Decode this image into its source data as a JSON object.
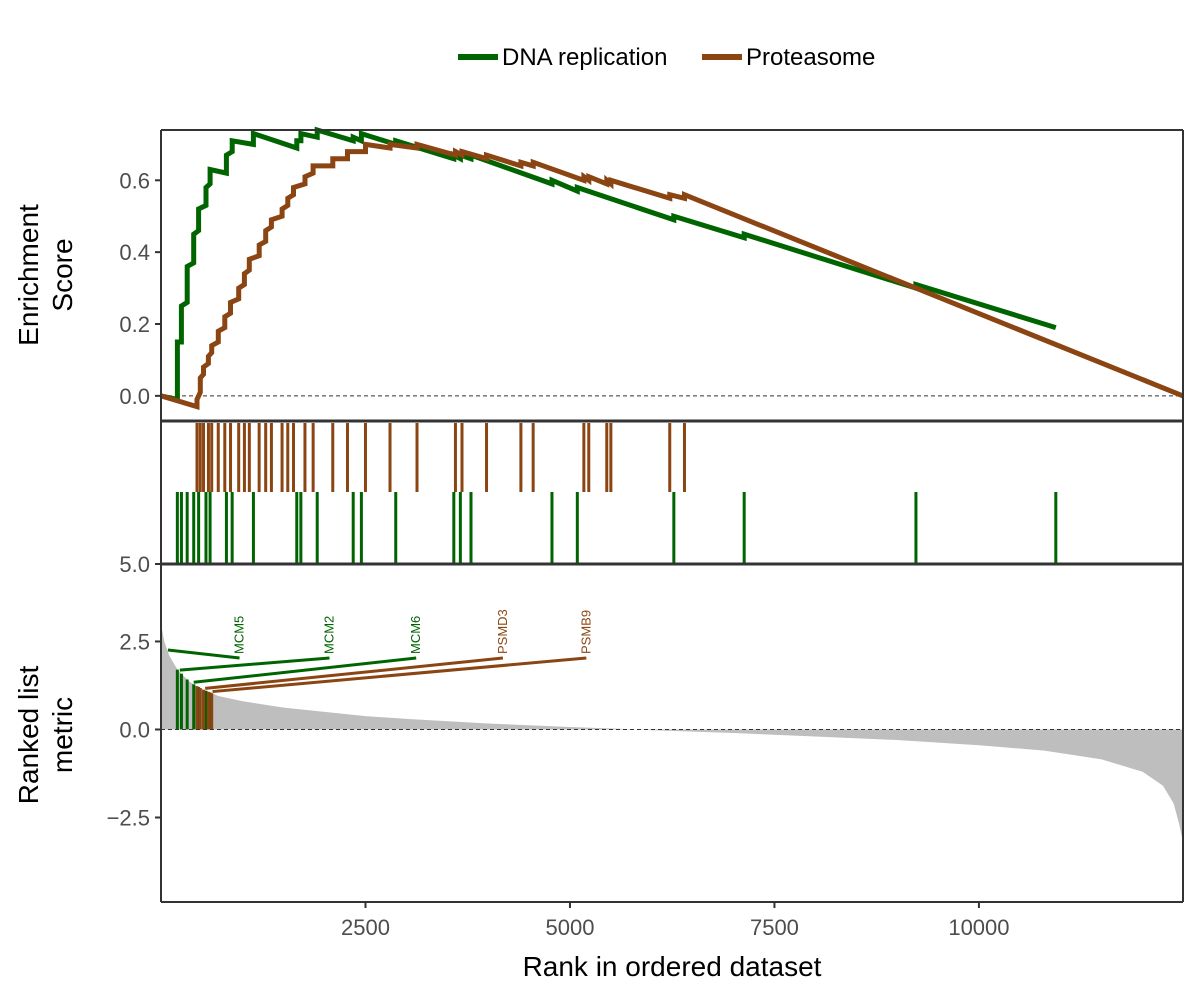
{
  "chart_data": {
    "type": "line",
    "xlabel": "Rank in ordered dataset",
    "x_ticks": [
      2500,
      5000,
      7500,
      10000
    ],
    "xlim": [
      0,
      12495
    ],
    "legend": {
      "position": "top",
      "entries": [
        {
          "name": "DNA replication",
          "color": "#006400"
        },
        {
          "name": "Proteasome",
          "color": "#8B4513"
        }
      ]
    },
    "panels": {
      "enrichment": {
        "ylabel_lines": [
          "Enrichment",
          "Score"
        ],
        "ylim": [
          -0.07,
          0.74
        ],
        "y_ticks": [
          {
            "value": 0.0,
            "label": "0.0"
          },
          {
            "value": 0.2,
            "label": "0.2"
          },
          {
            "value": 0.4,
            "label": "0.4"
          },
          {
            "value": 0.6,
            "label": "0.6"
          }
        ],
        "zero_line": true
      },
      "hits": {
        "bottom_tick_label": "5.0"
      },
      "ranked": {
        "ylabel_lines": [
          "Ranked list",
          "metric"
        ],
        "ylim": [
          -4.9,
          4.7
        ],
        "y_ticks": [
          {
            "value": 2.5,
            "label": "2.5"
          },
          {
            "value": 0.0,
            "label": "0.0"
          },
          {
            "value": -2.5,
            "label": "−2.5"
          }
        ],
        "zero_line": true,
        "fill_color": "#bebebe",
        "metric_profile": [
          {
            "x": 0,
            "y": 3.0
          },
          {
            "x": 40,
            "y": 2.5
          },
          {
            "x": 100,
            "y": 2.1
          },
          {
            "x": 200,
            "y": 1.7
          },
          {
            "x": 350,
            "y": 1.35
          },
          {
            "x": 500,
            "y": 1.15
          },
          {
            "x": 700,
            "y": 0.95
          },
          {
            "x": 1000,
            "y": 0.8
          },
          {
            "x": 1500,
            "y": 0.62
          },
          {
            "x": 2000,
            "y": 0.5
          },
          {
            "x": 2500,
            "y": 0.38
          },
          {
            "x": 3000,
            "y": 0.3
          },
          {
            "x": 4000,
            "y": 0.17
          },
          {
            "x": 5000,
            "y": 0.07
          },
          {
            "x": 5600,
            "y": 0.02
          },
          {
            "x": 6000,
            "y": -0.02
          },
          {
            "x": 7000,
            "y": -0.1
          },
          {
            "x": 8000,
            "y": -0.2
          },
          {
            "x": 9000,
            "y": -0.3
          },
          {
            "x": 10000,
            "y": -0.45
          },
          {
            "x": 10800,
            "y": -0.6
          },
          {
            "x": 11500,
            "y": -0.85
          },
          {
            "x": 12000,
            "y": -1.2
          },
          {
            "x": 12250,
            "y": -1.6
          },
          {
            "x": 12380,
            "y": -2.1
          },
          {
            "x": 12450,
            "y": -2.7
          },
          {
            "x": 12495,
            "y": -3.2
          }
        ],
        "gene_labels": [
          {
            "gene": "MCM5",
            "series": "DNA replication",
            "rank": 85,
            "label_x": 960
          },
          {
            "gene": "MCM2",
            "series": "DNA replication",
            "rank": 230,
            "label_x": 2060
          },
          {
            "gene": "MCM6",
            "series": "DNA replication",
            "rank": 400,
            "label_x": 3120
          },
          {
            "gene": "PSMD3",
            "series": "Proteasome",
            "rank": 540,
            "label_x": 4180
          },
          {
            "gene": "PSMB9",
            "series": "Proteasome",
            "rank": 630,
            "label_x": 5200
          }
        ]
      }
    },
    "series": [
      {
        "name": "DNA replication",
        "color": "#006400",
        "hit_ranks": [
          200,
          250,
          320,
          400,
          460,
          550,
          600,
          800,
          870,
          1130,
          1660,
          1710,
          1910,
          2350,
          2450,
          2870,
          3580,
          3660,
          3790,
          4780,
          5090,
          6270,
          7130,
          9230,
          10940
        ],
        "es_curve": [
          {
            "x": 0,
            "y": 0.0
          },
          {
            "x": 200,
            "y": -0.01
          },
          {
            "x": 200,
            "y": 0.15
          },
          {
            "x": 250,
            "y": 0.15
          },
          {
            "x": 250,
            "y": 0.25
          },
          {
            "x": 320,
            "y": 0.26
          },
          {
            "x": 320,
            "y": 0.36
          },
          {
            "x": 400,
            "y": 0.37
          },
          {
            "x": 400,
            "y": 0.45
          },
          {
            "x": 460,
            "y": 0.46
          },
          {
            "x": 460,
            "y": 0.52
          },
          {
            "x": 550,
            "y": 0.53
          },
          {
            "x": 550,
            "y": 0.58
          },
          {
            "x": 600,
            "y": 0.59
          },
          {
            "x": 600,
            "y": 0.63
          },
          {
            "x": 800,
            "y": 0.62
          },
          {
            "x": 800,
            "y": 0.67
          },
          {
            "x": 870,
            "y": 0.68
          },
          {
            "x": 870,
            "y": 0.71
          },
          {
            "x": 1130,
            "y": 0.7
          },
          {
            "x": 1130,
            "y": 0.73
          },
          {
            "x": 1660,
            "y": 0.69
          },
          {
            "x": 1660,
            "y": 0.71
          },
          {
            "x": 1710,
            "y": 0.71
          },
          {
            "x": 1710,
            "y": 0.73
          },
          {
            "x": 1910,
            "y": 0.72
          },
          {
            "x": 1910,
            "y": 0.74
          },
          {
            "x": 2350,
            "y": 0.71
          },
          {
            "x": 2350,
            "y": 0.72
          },
          {
            "x": 2450,
            "y": 0.71
          },
          {
            "x": 2450,
            "y": 0.73
          },
          {
            "x": 2870,
            "y": 0.7
          },
          {
            "x": 2870,
            "y": 0.71
          },
          {
            "x": 3580,
            "y": 0.66
          },
          {
            "x": 3580,
            "y": 0.67
          },
          {
            "x": 3660,
            "y": 0.66
          },
          {
            "x": 3660,
            "y": 0.67
          },
          {
            "x": 3790,
            "y": 0.66
          },
          {
            "x": 3790,
            "y": 0.67
          },
          {
            "x": 4780,
            "y": 0.59
          },
          {
            "x": 4780,
            "y": 0.6
          },
          {
            "x": 5090,
            "y": 0.57
          },
          {
            "x": 5090,
            "y": 0.58
          },
          {
            "x": 6270,
            "y": 0.49
          },
          {
            "x": 6270,
            "y": 0.5
          },
          {
            "x": 7130,
            "y": 0.44
          },
          {
            "x": 7130,
            "y": 0.45
          },
          {
            "x": 9230,
            "y": 0.3
          },
          {
            "x": 9230,
            "y": 0.31
          },
          {
            "x": 10940,
            "y": 0.19
          }
        ]
      },
      {
        "name": "Proteasome",
        "color": "#8B4513",
        "hit_ranks": [
          440,
          480,
          520,
          580,
          620,
          700,
          780,
          850,
          950,
          1020,
          1080,
          1200,
          1280,
          1350,
          1480,
          1550,
          1620,
          1760,
          1860,
          2100,
          2280,
          2500,
          2800,
          3130,
          3600,
          3680,
          3980,
          4400,
          4550,
          5170,
          5230,
          5450,
          5500,
          6220,
          6400
        ],
        "es_curve": [
          {
            "x": 0,
            "y": 0.0
          },
          {
            "x": 440,
            "y": -0.03
          },
          {
            "x": 440,
            "y": -0.01
          },
          {
            "x": 480,
            "y": 0.01
          },
          {
            "x": 480,
            "y": 0.05
          },
          {
            "x": 520,
            "y": 0.06
          },
          {
            "x": 520,
            "y": 0.08
          },
          {
            "x": 580,
            "y": 0.09
          },
          {
            "x": 580,
            "y": 0.11
          },
          {
            "x": 620,
            "y": 0.12
          },
          {
            "x": 620,
            "y": 0.14
          },
          {
            "x": 700,
            "y": 0.15
          },
          {
            "x": 700,
            "y": 0.18
          },
          {
            "x": 780,
            "y": 0.19
          },
          {
            "x": 780,
            "y": 0.22
          },
          {
            "x": 850,
            "y": 0.23
          },
          {
            "x": 850,
            "y": 0.26
          },
          {
            "x": 950,
            "y": 0.27
          },
          {
            "x": 950,
            "y": 0.3
          },
          {
            "x": 1020,
            "y": 0.31
          },
          {
            "x": 1020,
            "y": 0.34
          },
          {
            "x": 1080,
            "y": 0.35
          },
          {
            "x": 1080,
            "y": 0.38
          },
          {
            "x": 1200,
            "y": 0.39
          },
          {
            "x": 1200,
            "y": 0.42
          },
          {
            "x": 1280,
            "y": 0.43
          },
          {
            "x": 1280,
            "y": 0.46
          },
          {
            "x": 1350,
            "y": 0.47
          },
          {
            "x": 1350,
            "y": 0.49
          },
          {
            "x": 1480,
            "y": 0.5
          },
          {
            "x": 1480,
            "y": 0.52
          },
          {
            "x": 1550,
            "y": 0.53
          },
          {
            "x": 1550,
            "y": 0.55
          },
          {
            "x": 1620,
            "y": 0.56
          },
          {
            "x": 1620,
            "y": 0.58
          },
          {
            "x": 1760,
            "y": 0.59
          },
          {
            "x": 1760,
            "y": 0.61
          },
          {
            "x": 1860,
            "y": 0.62
          },
          {
            "x": 1860,
            "y": 0.64
          },
          {
            "x": 2100,
            "y": 0.64
          },
          {
            "x": 2100,
            "y": 0.66
          },
          {
            "x": 2280,
            "y": 0.66
          },
          {
            "x": 2280,
            "y": 0.68
          },
          {
            "x": 2500,
            "y": 0.68
          },
          {
            "x": 2500,
            "y": 0.7
          },
          {
            "x": 2800,
            "y": 0.69
          },
          {
            "x": 2800,
            "y": 0.7
          },
          {
            "x": 3130,
            "y": 0.69
          },
          {
            "x": 3130,
            "y": 0.7
          },
          {
            "x": 3600,
            "y": 0.67
          },
          {
            "x": 3600,
            "y": 0.68
          },
          {
            "x": 3680,
            "y": 0.67
          },
          {
            "x": 3680,
            "y": 0.68
          },
          {
            "x": 3980,
            "y": 0.66
          },
          {
            "x": 3980,
            "y": 0.67
          },
          {
            "x": 4400,
            "y": 0.64
          },
          {
            "x": 4400,
            "y": 0.65
          },
          {
            "x": 4550,
            "y": 0.64
          },
          {
            "x": 4550,
            "y": 0.65
          },
          {
            "x": 5170,
            "y": 0.6
          },
          {
            "x": 5170,
            "y": 0.61
          },
          {
            "x": 5230,
            "y": 0.6
          },
          {
            "x": 5230,
            "y": 0.61
          },
          {
            "x": 5450,
            "y": 0.59
          },
          {
            "x": 5450,
            "y": 0.6
          },
          {
            "x": 5500,
            "y": 0.59
          },
          {
            "x": 5500,
            "y": 0.6
          },
          {
            "x": 6220,
            "y": 0.55
          },
          {
            "x": 6220,
            "y": 0.56
          },
          {
            "x": 6400,
            "y": 0.55
          },
          {
            "x": 6400,
            "y": 0.56
          },
          {
            "x": 12495,
            "y": 0.0
          }
        ]
      }
    ]
  }
}
